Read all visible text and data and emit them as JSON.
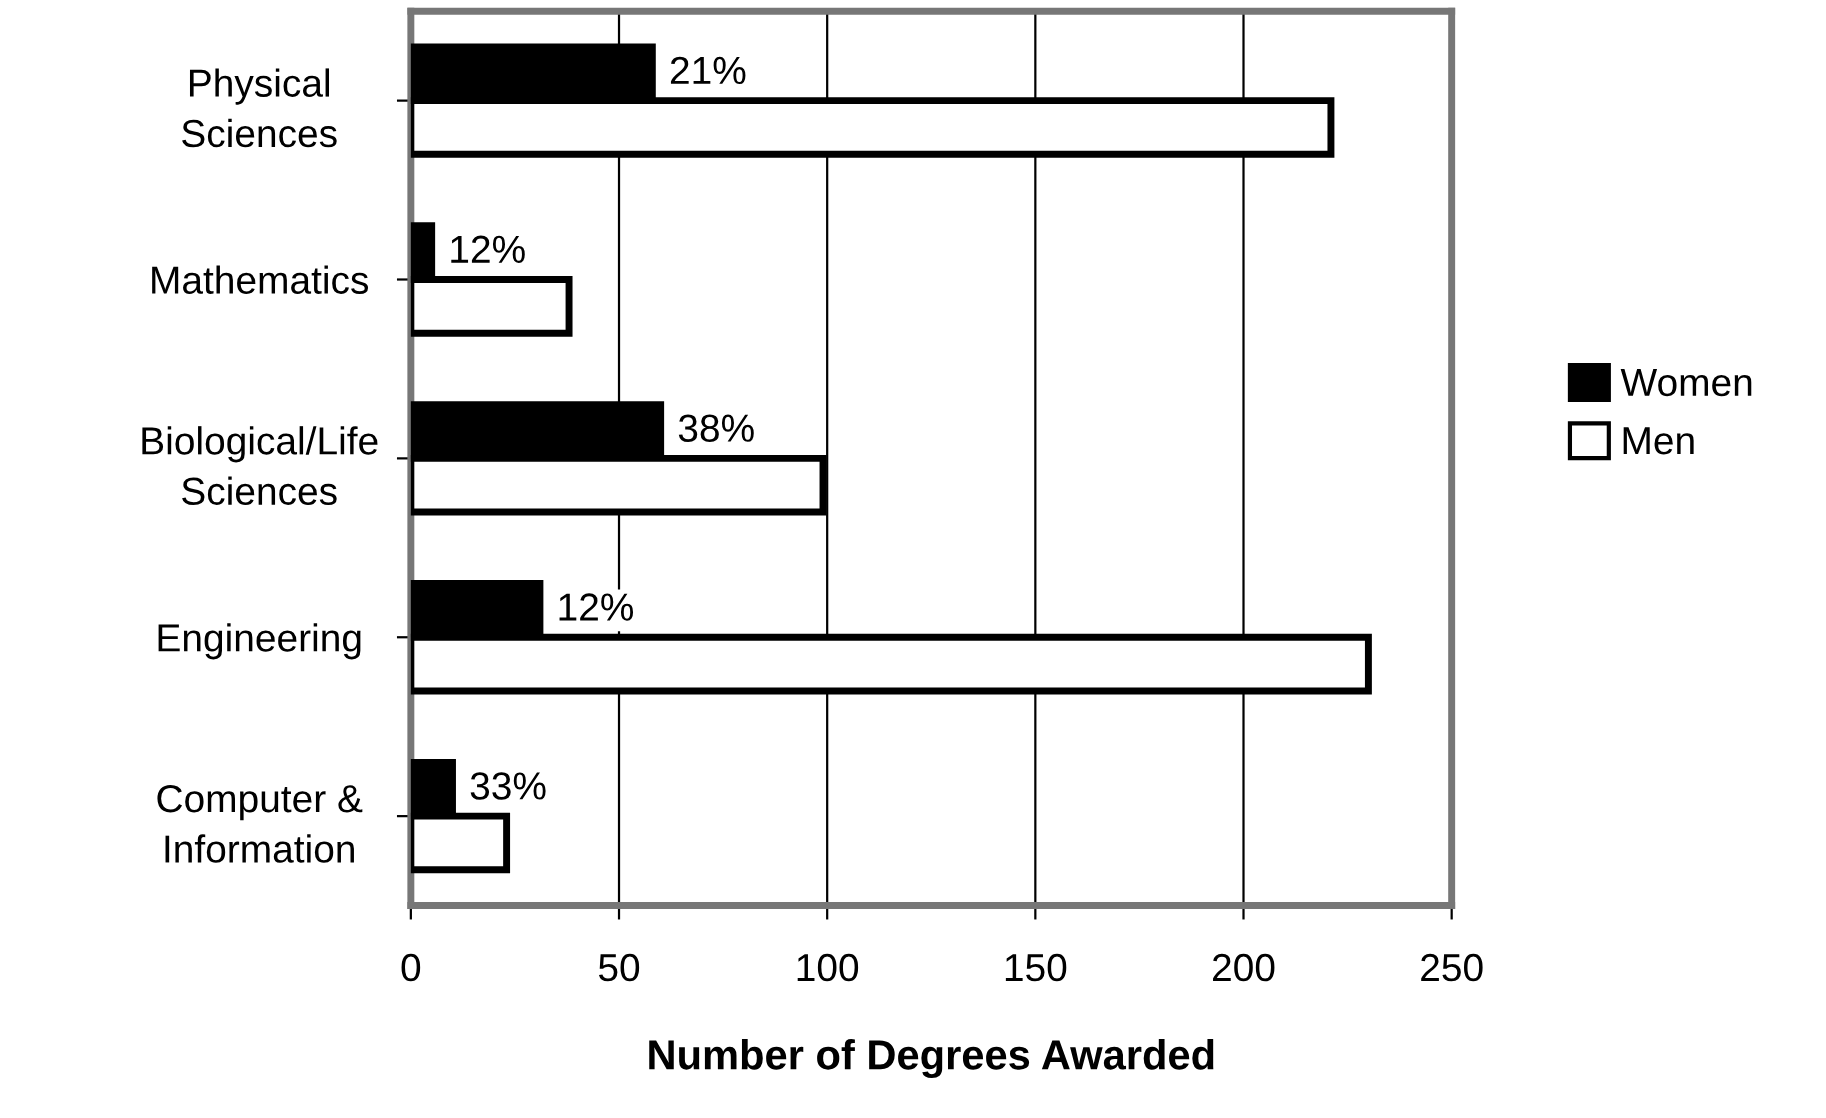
{
  "chart_data": {
    "type": "bar",
    "orientation": "horizontal",
    "xlabel": "Number of Degrees Awarded",
    "categories": [
      "Physical\nSciences",
      "Mathematics",
      "Biological/Life\nSciences",
      "Engineering",
      "Computer &\nInformation"
    ],
    "series": [
      {
        "name": "Women",
        "color": "#000000",
        "values": [
          58,
          5,
          60,
          31,
          10
        ]
      },
      {
        "name": "Men",
        "color": "#ffffff",
        "values": [
          221,
          38,
          99,
          230,
          23
        ]
      }
    ],
    "annotations": [
      {
        "text": "21%",
        "x": 58,
        "y": "Physical\nSciences"
      },
      {
        "text": "12%",
        "x": 5,
        "y": "Mathematics"
      },
      {
        "text": "38%",
        "x": 60,
        "y": "Biological/Life\nSciences"
      },
      {
        "text": "12%",
        "x": 31,
        "y": "Engineering"
      },
      {
        "text": "33%",
        "x": 10,
        "y": "Computer &\nInformation"
      }
    ],
    "xlim": [
      0,
      250
    ],
    "xticks": [
      0,
      50,
      100,
      150,
      200,
      250
    ],
    "grid": "x",
    "legend": "right"
  }
}
